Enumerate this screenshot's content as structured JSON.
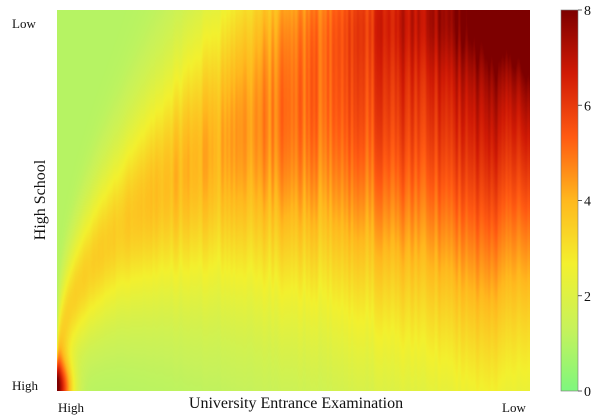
{
  "chart_data": {
    "type": "heatmap",
    "title": "",
    "xlabel": "University Entrance Examination",
    "ylabel": "High School",
    "x_tick_labels": [
      "High",
      "Low"
    ],
    "y_tick_labels": [
      "High",
      "Low"
    ],
    "colorbar": {
      "range": [
        0,
        8
      ],
      "ticks": [
        "0",
        "2",
        "4",
        "6",
        "8"
      ],
      "colors": [
        "#7ef77e",
        "#c8f25a",
        "#f3f02e",
        "#ffb81e",
        "#ff5a12",
        "#d01a05",
        "#7d0000"
      ]
    },
    "background_value": 1,
    "grid": false,
    "legend": "colorbar-right"
  }
}
